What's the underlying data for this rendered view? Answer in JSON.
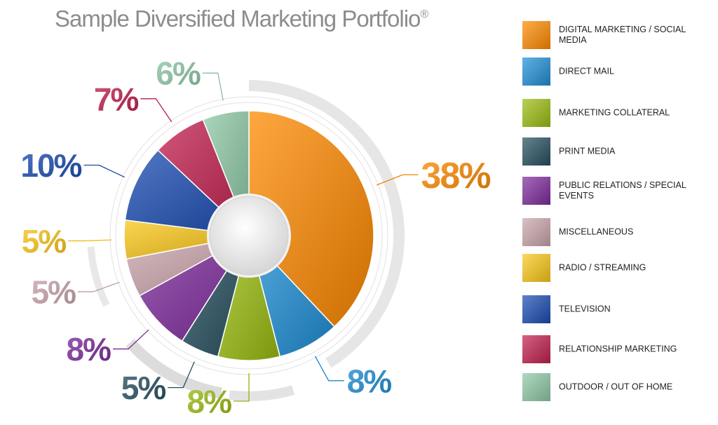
{
  "chart_data": {
    "type": "pie",
    "title": "Sample Diversified Marketing Portfolio",
    "title_mark": "®",
    "legend_position": "right",
    "slices": [
      {
        "label": "DIGITAL MARKETING / SOCIAL MEDIA",
        "value": 38,
        "display": "38%",
        "color": "#ff8a00"
      },
      {
        "label": "DIRECT MAIL",
        "value": 8,
        "display": "8%",
        "color": "#1e8fd6"
      },
      {
        "label": "MARKETING COLLATERAL",
        "value": 8,
        "display": "8%",
        "color": "#9bbd10"
      },
      {
        "label": "PRINT MEDIA",
        "value": 5,
        "display": "5%",
        "color": "#254f5f"
      },
      {
        "label": "PUBLIC RELATIONS / SPECIAL EVENTS",
        "value": 8,
        "display": "8%",
        "color": "#7e2a9c"
      },
      {
        "label": "MISCELLANEOUS",
        "value": 5,
        "display": "5%",
        "color": "#c9a5ac"
      },
      {
        "label": "RADIO / STREAMING",
        "value": 5,
        "display": "5%",
        "color": "#fbc718"
      },
      {
        "label": "TELEVISION",
        "value": 10,
        "display": "10%",
        "color": "#1a4bb2"
      },
      {
        "label": "RELATIONSHIP MARKETING",
        "value": 7,
        "display": "7%",
        "color": "#c21f4e"
      },
      {
        "label": "OUTDOOR / OUT OF HOME",
        "value": 6,
        "display": "6%",
        "color": "#8fc9a6"
      }
    ]
  }
}
